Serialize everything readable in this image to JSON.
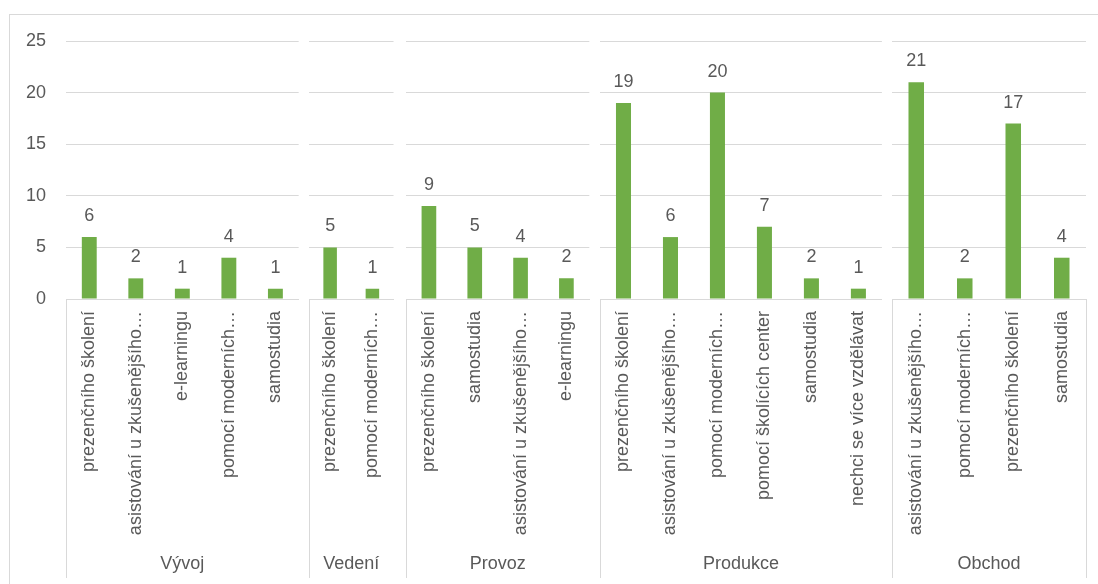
{
  "chart_data": [
    {
      "type": "bar",
      "xlabel": "Vývoj",
      "categories": [
        "prezenčního školení",
        "asistování u zkušenějšího…",
        "e-learningu",
        "pomocí moderních…",
        "samostudia"
      ],
      "values": [
        6,
        2,
        1,
        4,
        1
      ],
      "color": "#70ad47",
      "ylim": [
        0,
        25
      ],
      "yticks": [
        0,
        5,
        10,
        15,
        20,
        25
      ],
      "grid": "y",
      "data_labels": true
    },
    {
      "type": "bar",
      "xlabel": "Vedení",
      "categories": [
        "prezenčního školení",
        "pomocí moderních…"
      ],
      "values": [
        5,
        1
      ],
      "color": "#70ad47",
      "ylim": [
        0,
        25
      ],
      "yticks": [
        0,
        5,
        10,
        15,
        20,
        25
      ],
      "grid": "y",
      "data_labels": true,
      "tick_labels": "x"
    },
    {
      "type": "bar",
      "xlabel": "Provoz",
      "categories": [
        "prezenčního školení",
        "samostudia",
        "asistování u zkušenějšího…",
        "e-learningu"
      ],
      "values": [
        9,
        5,
        4,
        2
      ],
      "color": "#70ad47",
      "ylim": [
        0,
        25
      ],
      "yticks": [
        0,
        5,
        10,
        15,
        20,
        25
      ],
      "grid": "y",
      "data_labels": true,
      "tick_labels": "x"
    },
    {
      "type": "bar",
      "xlabel": "Produkce",
      "categories": [
        "prezenčního školení",
        "asistování u zkušenějšího…",
        "pomocí moderních…",
        "pomocí školících center",
        "samostudia",
        "nechci se více vzdělávat"
      ],
      "values": [
        19,
        6,
        20,
        7,
        2,
        1
      ],
      "color": "#70ad47",
      "ylim": [
        0,
        25
      ],
      "yticks": [
        0,
        5,
        10,
        15,
        20,
        25
      ],
      "grid": "y",
      "data_labels": true,
      "tick_labels": "x"
    },
    {
      "type": "bar",
      "xlabel": "Obchod",
      "categories": [
        "asistování u zkušenějšího…",
        "pomocí moderních…",
        "prezenčního školení",
        "samostudia"
      ],
      "values": [
        21,
        2,
        17,
        4
      ],
      "color": "#70ad47",
      "ylim": [
        0,
        25
      ],
      "yticks": [
        0,
        5,
        10,
        15,
        20,
        25
      ],
      "grid": "y",
      "data_labels": true,
      "tick_labels": "x"
    }
  ]
}
